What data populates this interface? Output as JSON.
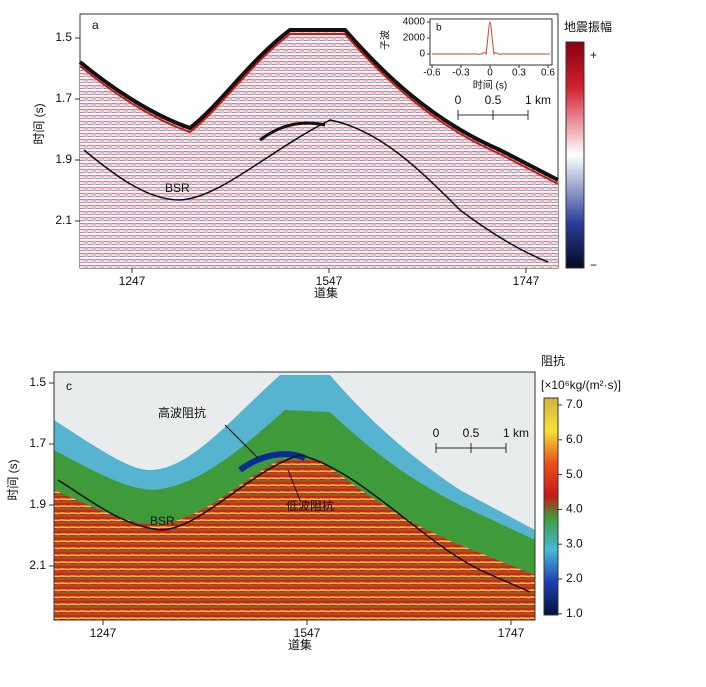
{
  "panel_a": {
    "label": "a",
    "y_label": "时间 (s)",
    "x_label": "道集",
    "yticks": [
      1.5,
      1.7,
      1.9,
      2.1
    ],
    "xticks": [
      1247,
      1547,
      1747
    ],
    "annotation": "BSR",
    "colorbar": {
      "title": "地震振幅",
      "top": "+",
      "bottom": "−"
    },
    "scale_bar": [
      "0",
      "0.5",
      "1 km"
    ],
    "inset": {
      "label": "b",
      "y_label": "子波",
      "x_label": "时间 (s)",
      "yticks": [
        0,
        2000,
        4000
      ],
      "xticks": [
        -0.6,
        -0.3,
        0,
        0.3,
        0.6
      ]
    }
  },
  "panel_c": {
    "label": "c",
    "y_label": "时间 (s)",
    "x_label": "道集",
    "yticks": [
      1.5,
      1.7,
      1.9,
      2.1
    ],
    "xticks": [
      1247,
      1547,
      1747
    ],
    "annotations": [
      "高波阻抗",
      "低波阻抗",
      "BSR"
    ],
    "scale_bar": [
      "0",
      "0.5",
      "1 km"
    ],
    "colorbar": {
      "title": "阻抗",
      "unit": "[×10⁶kg/(m²·s)]",
      "ticks": [
        {
          "value": 7,
          "label": "7.0"
        },
        {
          "value": 6,
          "label": "6.0"
        },
        {
          "value": 5,
          "label": "5.0"
        },
        {
          "value": 4,
          "label": "4.0"
        },
        {
          "value": 3,
          "label": "3.0"
        },
        {
          "value": 2,
          "label": "2.0"
        },
        {
          "value": 1,
          "label": "1.0"
        }
      ]
    }
  }
}
